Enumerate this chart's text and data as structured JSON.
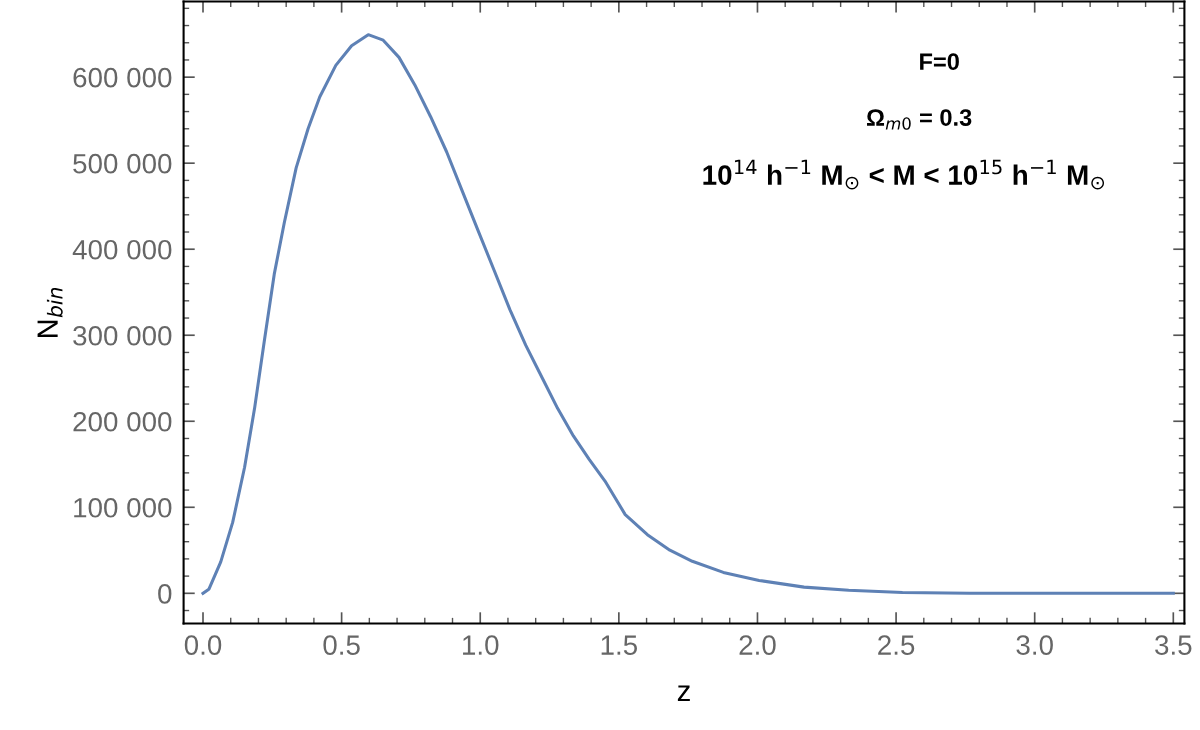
{
  "chart_data": {
    "type": "line",
    "xlabel": "z",
    "ylabel": "N$_{bin}$",
    "annotations": [
      "F=0",
      "Ω$_{m0}$ = 0.3",
      "10$^{14}$ h$^{−1}$ M$_{⊙}$ < M < 10$^{15}$ h$^{−1}$ M$_{⊙}$"
    ],
    "series": [
      {
        "color": "#5e81b5",
        "x": [
          0,
          0.021,
          0.064,
          0.107,
          0.15,
          0.186,
          0.221,
          0.257,
          0.293,
          0.336,
          0.379,
          0.421,
          0.479,
          0.536,
          0.596,
          0.65,
          0.707,
          0.764,
          0.821,
          0.879,
          0.936,
          0.993,
          1.05,
          1.107,
          1.164,
          1.221,
          1.279,
          1.336,
          1.393,
          1.45,
          1.523,
          1.603,
          1.684,
          1.765,
          1.877,
          2.006,
          2.168,
          2.329,
          2.523,
          2.765,
          3.5
        ],
        "values": [
          0,
          4600,
          36600,
          82400,
          146600,
          215000,
          293000,
          371000,
          430500,
          494600,
          540000,
          577000,
          613700,
          636600,
          649400,
          643000,
          623000,
          591000,
          554000,
          513000,
          467000,
          421000,
          375600,
          329800,
          288500,
          252000,
          215000,
          183000,
          155700,
          130500,
          91500,
          68200,
          50100,
          37200,
          24300,
          15000,
          7200,
          3600,
          1000,
          0,
          0
        ]
      }
    ],
    "xlim": [
      -0.07,
      3.54
    ],
    "ylim": [
      -35000,
      688000
    ],
    "xticks": [
      {
        "value": 0,
        "label": "0.0"
      },
      0.5,
      {
        "value": 1,
        "label": "1.0"
      },
      1.5,
      {
        "value": 2,
        "label": "2.0"
      },
      2.5,
      {
        "value": 3,
        "label": "3.0"
      },
      3.5
    ],
    "yticks": [
      0,
      {
        "value": 100000,
        "label": "100 000"
      },
      {
        "value": 200000,
        "label": "200 000"
      },
      {
        "value": 300000,
        "label": "300 000"
      },
      {
        "value": 400000,
        "label": "400 000"
      },
      {
        "value": 500000,
        "label": "500 000"
      },
      {
        "value": 600000,
        "label": "600 000"
      }
    ],
    "grid": false,
    "legend": false,
    "marker": "none",
    "line_style": "solid"
  }
}
